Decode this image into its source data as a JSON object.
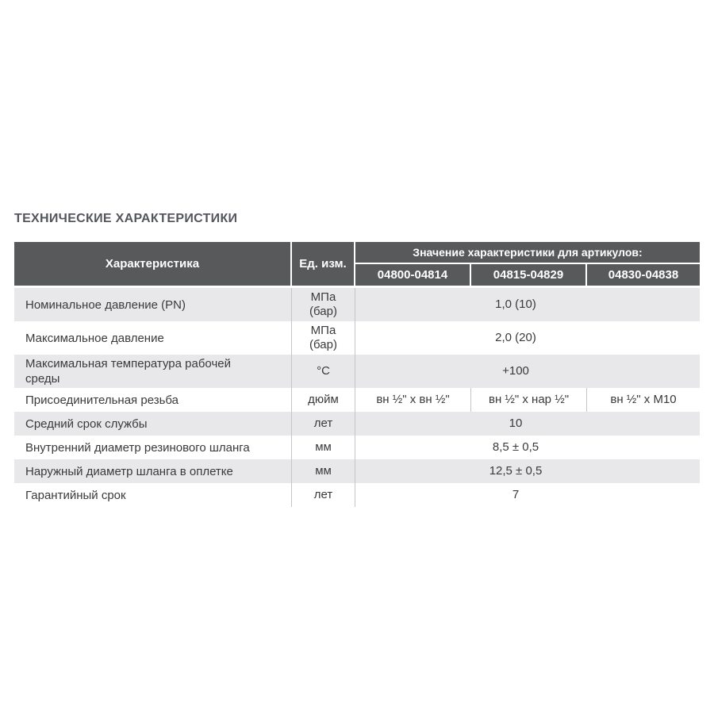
{
  "section": {
    "title": "ТЕХНИЧЕСКИЕ ХАРАКТЕРИСТИКИ"
  },
  "table": {
    "header": {
      "characteristic": "Характеристика",
      "unit": "Ед. изм.",
      "values_group": "Значение характеристики для артикулов:",
      "articles": [
        "04800-04814",
        "04815-04829",
        "04830-04838"
      ]
    },
    "rows": [
      {
        "name": "Номинальное давление (PN)",
        "unit": "МПа\n(бар)",
        "value": "1,0 (10)"
      },
      {
        "name": "Максимальное давление",
        "unit": "МПа\n(бар)",
        "value": "2,0 (20)"
      },
      {
        "name": "Максимальная температура рабочей\nсреды",
        "unit": "°С",
        "value": "+100"
      },
      {
        "name": "Присоединительная резьба",
        "unit": "дюйм",
        "values": [
          "вн ½\" х вн ½\"",
          "вн ½\" х нар ½\"",
          "вн ½\" х М10"
        ]
      },
      {
        "name": "Средний срок службы",
        "unit": "лет",
        "value": "10"
      },
      {
        "name": "Внутренний диаметр резинового шланга",
        "unit": "мм",
        "value": "8,5 ± 0,5"
      },
      {
        "name": "Наружный диаметр шланга в оплетке",
        "unit": "мм",
        "value": "12,5 ± 0,5"
      },
      {
        "name": "Гарантийный срок",
        "unit": "лет",
        "value": "7"
      }
    ]
  },
  "colors": {
    "header_bg": "#58595b",
    "header_text": "#ffffff",
    "stripe_bg": "#e8e8ea",
    "row_bg": "#ffffff",
    "body_text": "#3a3a3c",
    "title_text": "#54565e",
    "divider": "#c4c5c7"
  }
}
